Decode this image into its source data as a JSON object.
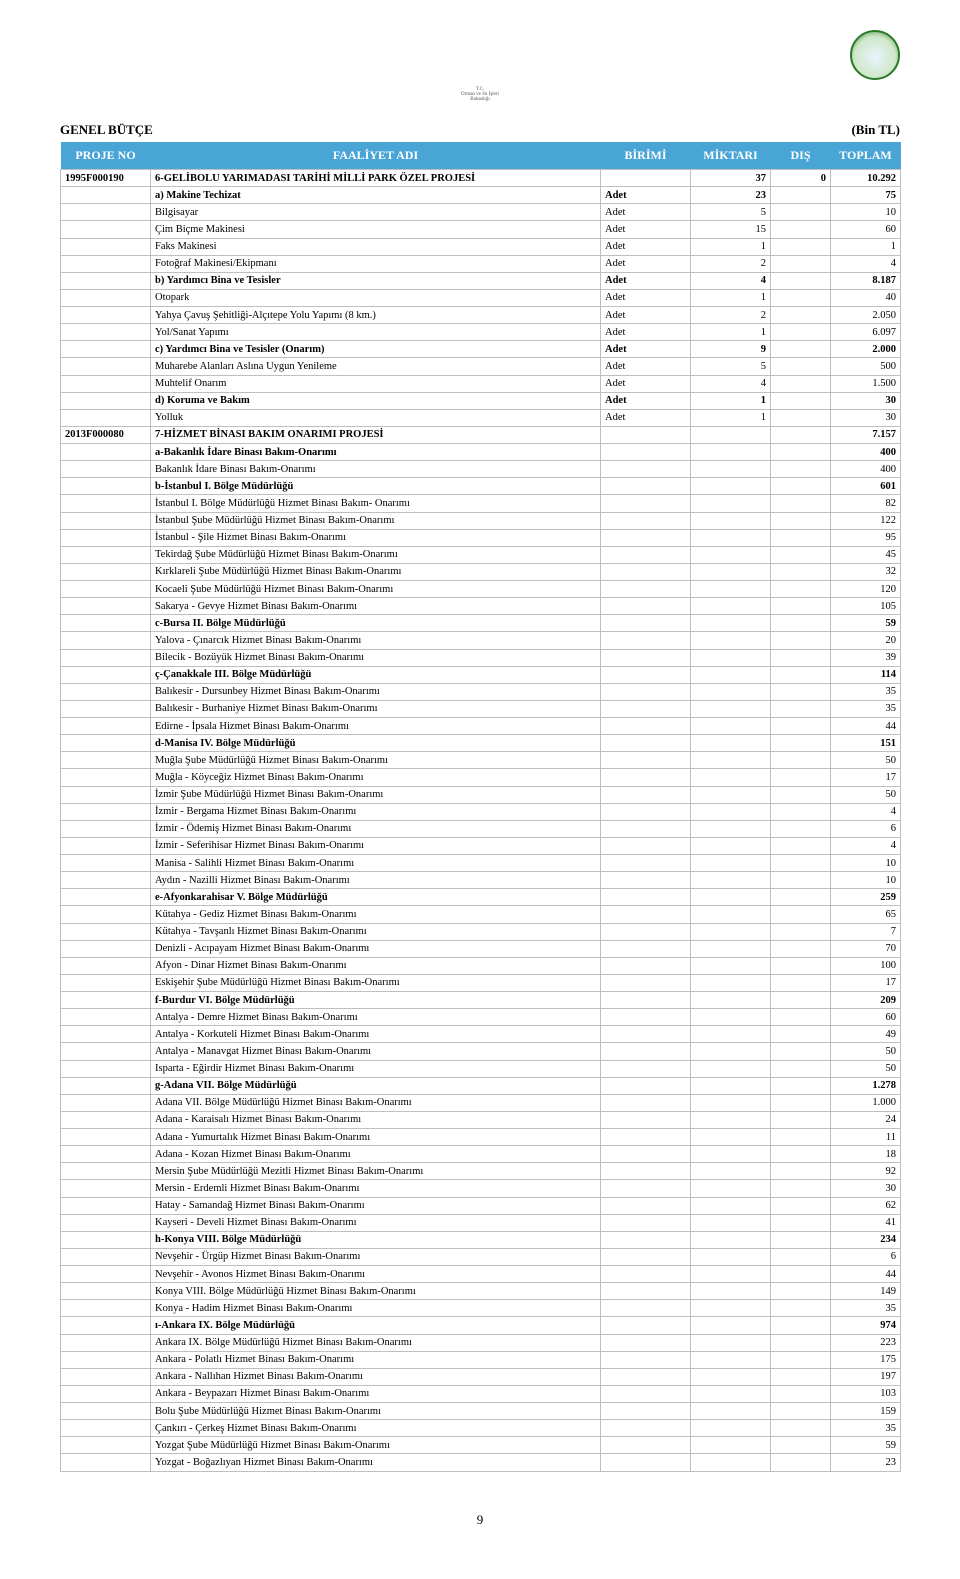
{
  "logo_caption_1": "T.C.",
  "logo_caption_2": "Orman ve Su İşleri",
  "logo_caption_3": "Bakanlığı",
  "top_left": "GENEL BÜTÇE",
  "top_right": "(Bin TL)",
  "columns": [
    "PROJE NO",
    "FAALİYET ADI",
    "BİRİMİ",
    "MİKTARI",
    "DIŞ",
    "TOPLAM"
  ],
  "page_number": "9",
  "rows": [
    {
      "proj": "1995F000190",
      "name": "6-GELİBOLU YARIMADASI TARİHİ MİLLİ PARK ÖZEL PROJESİ",
      "birimi": "",
      "miktari": "37",
      "dis": "0",
      "toplam": "10.292",
      "style": "bold"
    },
    {
      "proj": "",
      "name": "a) Makine Techizat",
      "birimi": "Adet",
      "miktari": "23",
      "dis": "",
      "toplam": "75",
      "style": "subbold"
    },
    {
      "proj": "",
      "name": "Bilgisayar",
      "birimi": "Adet",
      "miktari": "5",
      "dis": "",
      "toplam": "10"
    },
    {
      "proj": "",
      "name": "Çim Biçme Makinesi",
      "birimi": "Adet",
      "miktari": "15",
      "dis": "",
      "toplam": "60"
    },
    {
      "proj": "",
      "name": "Faks Makinesi",
      "birimi": "Adet",
      "miktari": "1",
      "dis": "",
      "toplam": "1"
    },
    {
      "proj": "",
      "name": "Fotoğraf Makinesi/Ekipmanı",
      "birimi": "Adet",
      "miktari": "2",
      "dis": "",
      "toplam": "4"
    },
    {
      "proj": "",
      "name": "b) Yardımcı Bina ve Tesisler",
      "birimi": "Adet",
      "miktari": "4",
      "dis": "",
      "toplam": "8.187",
      "style": "subbold"
    },
    {
      "proj": "",
      "name": "Otopark",
      "birimi": "Adet",
      "miktari": "1",
      "dis": "",
      "toplam": "40"
    },
    {
      "proj": "",
      "name": "Yahya Çavuş Şehitliği-Alçıtepe Yolu Yapımı (8 km.)",
      "birimi": "Adet",
      "miktari": "2",
      "dis": "",
      "toplam": "2.050"
    },
    {
      "proj": "",
      "name": "Yol/Sanat Yapımı",
      "birimi": "Adet",
      "miktari": "1",
      "dis": "",
      "toplam": "6.097"
    },
    {
      "proj": "",
      "name": "c) Yardımcı Bina ve Tesisler (Onarım)",
      "birimi": "Adet",
      "miktari": "9",
      "dis": "",
      "toplam": "2.000",
      "style": "subbold"
    },
    {
      "proj": "",
      "name": "Muharebe Alanları Aslına Uygun Yenileme",
      "birimi": "Adet",
      "miktari": "5",
      "dis": "",
      "toplam": "500"
    },
    {
      "proj": "",
      "name": "Muhtelif Onarım",
      "birimi": "Adet",
      "miktari": "4",
      "dis": "",
      "toplam": "1.500"
    },
    {
      "proj": "",
      "name": "d) Koruma ve Bakım",
      "birimi": "Adet",
      "miktari": "1",
      "dis": "",
      "toplam": "30",
      "style": "subbold"
    },
    {
      "proj": "",
      "name": "Yolluk",
      "birimi": "Adet",
      "miktari": "1",
      "dis": "",
      "toplam": "30"
    },
    {
      "proj": "2013F000080",
      "name": "7-HİZMET BİNASI BAKIM ONARIMI PROJESİ",
      "birimi": "",
      "miktari": "",
      "dis": "",
      "toplam": "7.157",
      "style": "bold"
    },
    {
      "proj": "",
      "name": "a-Bakanlık İdare Binası Bakım-Onarımı",
      "birimi": "",
      "miktari": "",
      "dis": "",
      "toplam": "400",
      "style": "subbold"
    },
    {
      "proj": "",
      "name": "Bakanlık İdare Binası Bakım-Onarımı",
      "birimi": "",
      "miktari": "",
      "dis": "",
      "toplam": "400"
    },
    {
      "proj": "",
      "name": "b-İstanbul I. Bölge Müdürlüğü",
      "birimi": "",
      "miktari": "",
      "dis": "",
      "toplam": "601",
      "style": "subbold"
    },
    {
      "proj": "",
      "name": "İstanbul I. Bölge Müdürlüğü Hizmet Binası Bakım- Onarımı",
      "birimi": "",
      "miktari": "",
      "dis": "",
      "toplam": "82"
    },
    {
      "proj": "",
      "name": "İstanbul Şube Müdürlüğü Hizmet Binası Bakım-Onarımı",
      "birimi": "",
      "miktari": "",
      "dis": "",
      "toplam": "122"
    },
    {
      "proj": "",
      "name": "İstanbul - Şile Hizmet Binası Bakım-Onarımı",
      "birimi": "",
      "miktari": "",
      "dis": "",
      "toplam": "95"
    },
    {
      "proj": "",
      "name": "Tekirdağ Şube Müdürlüğü Hizmet Binası Bakım-Onarımı",
      "birimi": "",
      "miktari": "",
      "dis": "",
      "toplam": "45"
    },
    {
      "proj": "",
      "name": "Kırklareli Şube Müdürlüğü Hizmet Binası Bakım-Onarımı",
      "birimi": "",
      "miktari": "",
      "dis": "",
      "toplam": "32"
    },
    {
      "proj": "",
      "name": "Kocaeli Şube Müdürlüğü Hizmet Binası Bakım-Onarımı",
      "birimi": "",
      "miktari": "",
      "dis": "",
      "toplam": "120"
    },
    {
      "proj": "",
      "name": "Sakarya - Gevye  Hizmet Binası Bakım-Onarımı",
      "birimi": "",
      "miktari": "",
      "dis": "",
      "toplam": "105"
    },
    {
      "proj": "",
      "name": "c-Bursa II. Bölge Müdürlüğü",
      "birimi": "",
      "miktari": "",
      "dis": "",
      "toplam": "59",
      "style": "subbold"
    },
    {
      "proj": "",
      "name": "Yalova - Çınarcık  Hizmet Binası Bakım-Onarımı",
      "birimi": "",
      "miktari": "",
      "dis": "",
      "toplam": "20"
    },
    {
      "proj": "",
      "name": "Bilecik - Bozüyük  Hizmet Binası Bakım-Onarımı",
      "birimi": "",
      "miktari": "",
      "dis": "",
      "toplam": "39"
    },
    {
      "proj": "",
      "name": "ç-Çanakkale III. Bölge Müdürlüğü",
      "birimi": "",
      "miktari": "",
      "dis": "",
      "toplam": "114",
      "style": "subbold"
    },
    {
      "proj": "",
      "name": "Balıkesir - Dursunbey Hizmet Binası Bakım-Onarımı",
      "birimi": "",
      "miktari": "",
      "dis": "",
      "toplam": "35"
    },
    {
      "proj": "",
      "name": "Balıkesir - Burhaniye  Hizmet Binası Bakım-Onarımı",
      "birimi": "",
      "miktari": "",
      "dis": "",
      "toplam": "35"
    },
    {
      "proj": "",
      "name": "Edirne - İpsala Hizmet Binası Bakım-Onarımı",
      "birimi": "",
      "miktari": "",
      "dis": "",
      "toplam": "44"
    },
    {
      "proj": "",
      "name": "d-Manisa IV. Bölge Müdürlüğü",
      "birimi": "",
      "miktari": "",
      "dis": "",
      "toplam": "151",
      "style": "subbold"
    },
    {
      "proj": "",
      "name": "Muğla Şube Müdürlüğü Hizmet Binası Bakım-Onarımı",
      "birimi": "",
      "miktari": "",
      "dis": "",
      "toplam": "50"
    },
    {
      "proj": "",
      "name": "Muğla - Köyceğiz Hizmet Binası Bakım-Onarımı",
      "birimi": "",
      "miktari": "",
      "dis": "",
      "toplam": "17"
    },
    {
      "proj": "",
      "name": "İzmir Şube Müdürlüğü Hizmet Binası Bakım-Onarımı",
      "birimi": "",
      "miktari": "",
      "dis": "",
      "toplam": "50"
    },
    {
      "proj": "",
      "name": "İzmir - Bergama Hizmet Binası Bakım-Onarımı",
      "birimi": "",
      "miktari": "",
      "dis": "",
      "toplam": "4"
    },
    {
      "proj": "",
      "name": "İzmir - Ödemiş  Hizmet Binası Bakım-Onarımı",
      "birimi": "",
      "miktari": "",
      "dis": "",
      "toplam": "6"
    },
    {
      "proj": "",
      "name": "İzmir - Seferihisar  Hizmet Binası Bakım-Onarımı",
      "birimi": "",
      "miktari": "",
      "dis": "",
      "toplam": "4"
    },
    {
      "proj": "",
      "name": "Manisa - Salihli Hizmet Binası Bakım-Onarımı",
      "birimi": "",
      "miktari": "",
      "dis": "",
      "toplam": "10"
    },
    {
      "proj": "",
      "name": "Aydın - Nazilli  Hizmet Binası Bakım-Onarımı",
      "birimi": "",
      "miktari": "",
      "dis": "",
      "toplam": "10"
    },
    {
      "proj": "",
      "name": "e-Afyonkarahisar V. Bölge Müdürlüğü",
      "birimi": "",
      "miktari": "",
      "dis": "",
      "toplam": "259",
      "style": "subbold"
    },
    {
      "proj": "",
      "name": "Kütahya - Gediz  Hizmet Binası Bakım-Onarımı",
      "birimi": "",
      "miktari": "",
      "dis": "",
      "toplam": "65"
    },
    {
      "proj": "",
      "name": "Kütahya - Tavşanlı  Hizmet Binası Bakım-Onarımı",
      "birimi": "",
      "miktari": "",
      "dis": "",
      "toplam": "7"
    },
    {
      "proj": "",
      "name": "Denizli - Acıpayam Hizmet Binası Bakım-Onarımı",
      "birimi": "",
      "miktari": "",
      "dis": "",
      "toplam": "70"
    },
    {
      "proj": "",
      "name": "Afyon - Dinar  Hizmet Binası Bakım-Onarımı",
      "birimi": "",
      "miktari": "",
      "dis": "",
      "toplam": "100"
    },
    {
      "proj": "",
      "name": "Eskişehir Şube Müdürlüğü Hizmet Binası Bakım-Onarımı",
      "birimi": "",
      "miktari": "",
      "dis": "",
      "toplam": "17"
    },
    {
      "proj": "",
      "name": "f-Burdur VI. Bölge Müdürlüğü",
      "birimi": "",
      "miktari": "",
      "dis": "",
      "toplam": "209",
      "style": "subbold"
    },
    {
      "proj": "",
      "name": "Antalya - Demre Hizmet Binası Bakım-Onarımı",
      "birimi": "",
      "miktari": "",
      "dis": "",
      "toplam": "60"
    },
    {
      "proj": "",
      "name": "Antalya - Korkuteli Hizmet Binası Bakım-Onarımı",
      "birimi": "",
      "miktari": "",
      "dis": "",
      "toplam": "49"
    },
    {
      "proj": "",
      "name": "Antalya - Manavgat  Hizmet Binası Bakım-Onarımı",
      "birimi": "",
      "miktari": "",
      "dis": "",
      "toplam": "50"
    },
    {
      "proj": "",
      "name": "Isparta - Eğirdir  Hizmet Binası Bakım-Onarımı",
      "birimi": "",
      "miktari": "",
      "dis": "",
      "toplam": "50"
    },
    {
      "proj": "",
      "name": "g-Adana VII. Bölge Müdürlüğü",
      "birimi": "",
      "miktari": "",
      "dis": "",
      "toplam": "1.278",
      "style": "subbold"
    },
    {
      "proj": "",
      "name": "Adana VII. Bölge Müdürlüğü Hizmet Binası Bakım-Onarımı",
      "birimi": "",
      "miktari": "",
      "dis": "",
      "toplam": "1.000"
    },
    {
      "proj": "",
      "name": "Adana - Karaisalı  Hizmet Binası Bakım-Onarımı",
      "birimi": "",
      "miktari": "",
      "dis": "",
      "toplam": "24"
    },
    {
      "proj": "",
      "name": "Adana - Yumurtalık  Hizmet Binası Bakım-Onarımı",
      "birimi": "",
      "miktari": "",
      "dis": "",
      "toplam": "11"
    },
    {
      "proj": "",
      "name": "Adana - Kozan  Hizmet Binası Bakım-Onarımı",
      "birimi": "",
      "miktari": "",
      "dis": "",
      "toplam": "18"
    },
    {
      "proj": "",
      "name": "Mersin Şube Müdürlüğü Mezitli Hizmet Binası Bakım-Onarımı",
      "birimi": "",
      "miktari": "",
      "dis": "",
      "toplam": "92"
    },
    {
      "proj": "",
      "name": "Mersin - Erdemli  Hizmet Binası Bakım-Onarımı",
      "birimi": "",
      "miktari": "",
      "dis": "",
      "toplam": "30"
    },
    {
      "proj": "",
      "name": "Hatay - Samandağ  Hizmet Binası Bakım-Onarımı",
      "birimi": "",
      "miktari": "",
      "dis": "",
      "toplam": "62"
    },
    {
      "proj": "",
      "name": "Kayseri - Develi  Hizmet Binası Bakım-Onarımı",
      "birimi": "",
      "miktari": "",
      "dis": "",
      "toplam": "41"
    },
    {
      "proj": "",
      "name": "h-Konya VIII. Bölge Müdürlüğü",
      "birimi": "",
      "miktari": "",
      "dis": "",
      "toplam": "234",
      "style": "subbold"
    },
    {
      "proj": "",
      "name": "Nevşehir - Ürgüp  Hizmet Binası Bakım-Onarımı",
      "birimi": "",
      "miktari": "",
      "dis": "",
      "toplam": "6"
    },
    {
      "proj": "",
      "name": "Nevşehir - Avonos  Hizmet Binası Bakım-Onarımı",
      "birimi": "",
      "miktari": "",
      "dis": "",
      "toplam": "44"
    },
    {
      "proj": "",
      "name": "Konya VIII. Bölge Müdürlüğü Hizmet Binası Bakım-Onarımı",
      "birimi": "",
      "miktari": "",
      "dis": "",
      "toplam": "149"
    },
    {
      "proj": "",
      "name": "Konya - Hadim  Hizmet Binası Bakım-Onarımı",
      "birimi": "",
      "miktari": "",
      "dis": "",
      "toplam": "35"
    },
    {
      "proj": "",
      "name": "ı-Ankara IX. Bölge Müdürlüğü",
      "birimi": "",
      "miktari": "",
      "dis": "",
      "toplam": "974",
      "style": "subbold"
    },
    {
      "proj": "",
      "name": "Ankara IX. Bölge Müdürlüğü Hizmet Binası Bakım-Onarımı",
      "birimi": "",
      "miktari": "",
      "dis": "",
      "toplam": "223"
    },
    {
      "proj": "",
      "name": "Ankara - Polatlı  Hizmet Binası Bakım-Onarımı",
      "birimi": "",
      "miktari": "",
      "dis": "",
      "toplam": "175"
    },
    {
      "proj": "",
      "name": "Ankara - Nallıhan  Hizmet Binası Bakım-Onarımı",
      "birimi": "",
      "miktari": "",
      "dis": "",
      "toplam": "197"
    },
    {
      "proj": "",
      "name": "Ankara - Beypazarı Hizmet Binası Bakım-Onarımı",
      "birimi": "",
      "miktari": "",
      "dis": "",
      "toplam": "103"
    },
    {
      "proj": "",
      "name": "Bolu Şube Müdürlüğü Hizmet Binası Bakım-Onarımı",
      "birimi": "",
      "miktari": "",
      "dis": "",
      "toplam": "159"
    },
    {
      "proj": "",
      "name": "Çankırı - Çerkeş  Hizmet Binası Bakım-Onarımı",
      "birimi": "",
      "miktari": "",
      "dis": "",
      "toplam": "35"
    },
    {
      "proj": "",
      "name": "Yozgat Şube Müdürlüğü Hizmet Binası Bakım-Onarımı",
      "birimi": "",
      "miktari": "",
      "dis": "",
      "toplam": "59"
    },
    {
      "proj": "",
      "name": "Yozgat - Boğazlıyan  Hizmet Binası Bakım-Onarımı",
      "birimi": "",
      "miktari": "",
      "dis": "",
      "toplam": "23"
    }
  ]
}
